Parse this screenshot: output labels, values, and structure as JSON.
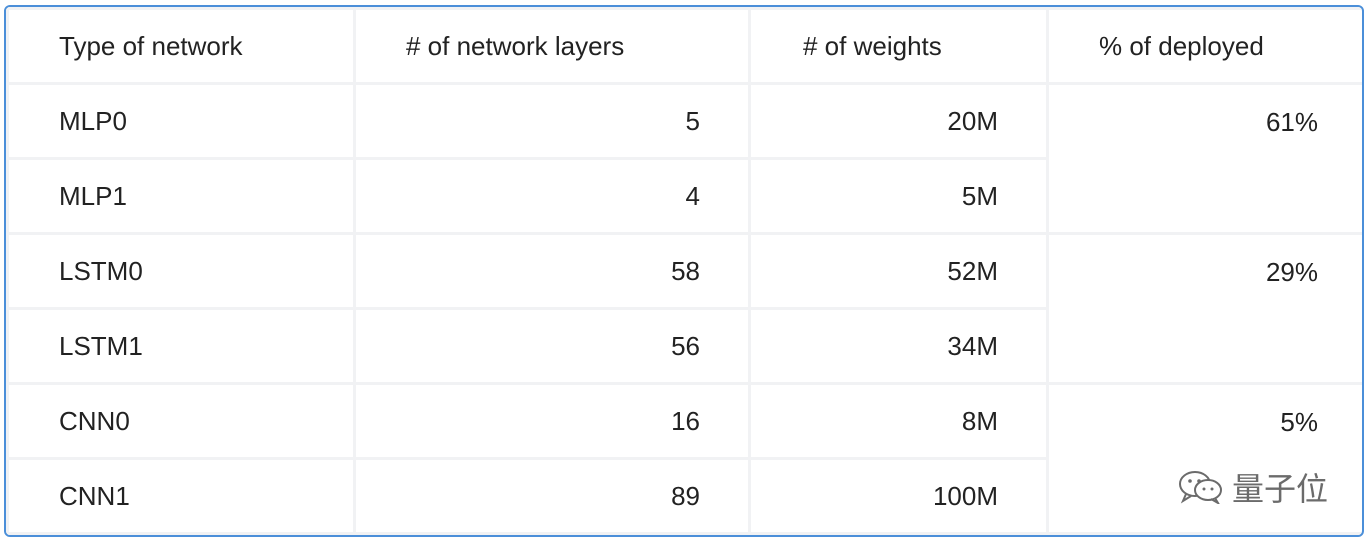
{
  "table": {
    "headers": [
      "Type of network",
      "# of network layers",
      "# of weights",
      "% of deployed"
    ],
    "rows": [
      {
        "type": "MLP0",
        "layers": "5",
        "weights": "20M"
      },
      {
        "type": "MLP1",
        "layers": "4",
        "weights": "5M"
      },
      {
        "type": "LSTM0",
        "layers": "58",
        "weights": "52M"
      },
      {
        "type": "LSTM1",
        "layers": "56",
        "weights": "34M"
      },
      {
        "type": "CNN0",
        "layers": "16",
        "weights": "8M"
      },
      {
        "type": "CNN1",
        "layers": "89",
        "weights": "100M"
      }
    ],
    "deployed": [
      "61%",
      "29%",
      "5%"
    ]
  },
  "watermark": {
    "text": "量子位",
    "icon": "wechat-icon"
  },
  "colors": {
    "border": "#4b8fd9",
    "grid": "#f1f2f4",
    "text": "#222222"
  }
}
